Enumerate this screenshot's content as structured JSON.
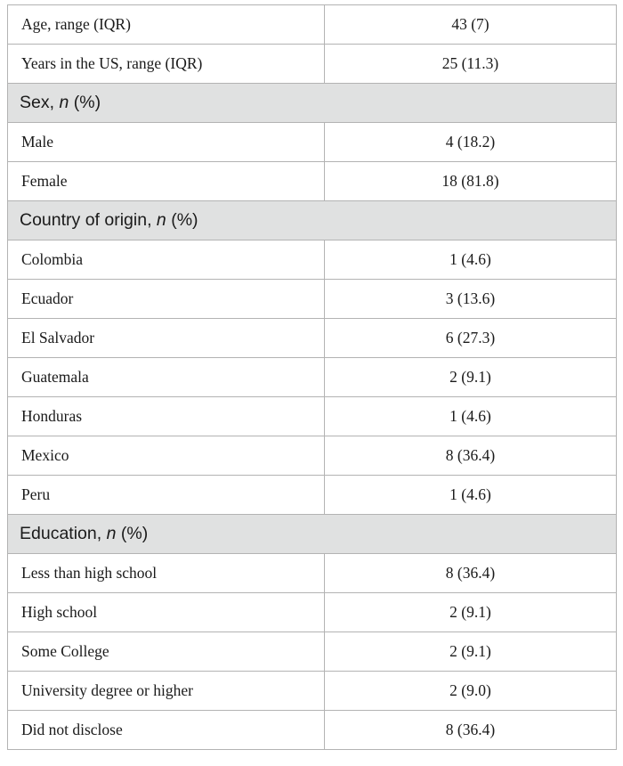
{
  "rows": [
    {
      "type": "data",
      "label": "Age, range (IQR)",
      "value": "43 (7)"
    },
    {
      "type": "data",
      "label": "Years in the US, range (IQR)",
      "value": "25 (11.3)"
    },
    {
      "type": "section",
      "label": "Sex,",
      "italic": "n",
      "suffix": "(%)"
    },
    {
      "type": "data",
      "label": "Male",
      "value": "4 (18.2)"
    },
    {
      "type": "data",
      "label": "Female",
      "value": "18 (81.8)"
    },
    {
      "type": "section",
      "label": "Country of origin,",
      "italic": "n",
      "suffix": "(%)"
    },
    {
      "type": "data",
      "label": "Colombia",
      "value": "1 (4.6)"
    },
    {
      "type": "data",
      "label": "Ecuador",
      "value": "3 (13.6)"
    },
    {
      "type": "data",
      "label": "El Salvador",
      "value": "6 (27.3)"
    },
    {
      "type": "data",
      "label": "Guatemala",
      "value": "2 (9.1)"
    },
    {
      "type": "data",
      "label": "Honduras",
      "value": "1 (4.6)"
    },
    {
      "type": "data",
      "label": "Mexico",
      "value": "8 (36.4)"
    },
    {
      "type": "data",
      "label": "Peru",
      "value": "1 (4.6)"
    },
    {
      "type": "section",
      "label": "Education,",
      "italic": "n",
      "suffix": "(%)"
    },
    {
      "type": "data",
      "label": "Less than high school",
      "value": "8 (36.4)"
    },
    {
      "type": "data",
      "label": "High school",
      "value": "2 (9.1)"
    },
    {
      "type": "data",
      "label": "Some College",
      "value": "2 (9.1)"
    },
    {
      "type": "data",
      "label": "University degree or higher",
      "value": "2 (9.0)"
    },
    {
      "type": "data",
      "label": "Did not disclose",
      "value": "8 (36.4)"
    }
  ]
}
